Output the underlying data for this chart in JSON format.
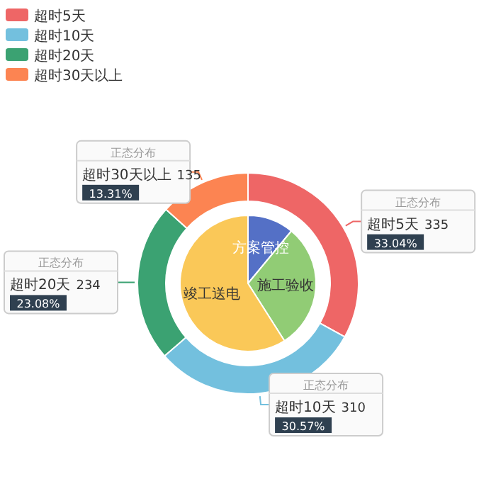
{
  "chart_data": [
    {
      "type": "donut",
      "categories": [
        "超时5天",
        "超时10天",
        "超时20天",
        "超时30天以上"
      ],
      "values": [
        335,
        310,
        234,
        135
      ],
      "colors": [
        "#ee6666",
        "#73c0de",
        "#3ba272",
        "#fc8452"
      ],
      "data_labels": true,
      "annotations": [
        "正态分布",
        "正态分布",
        "正态分布",
        "正态分布",
        {
          "text": "33.04%",
          "x": "超时5天"
        },
        {
          "text": "30.57%",
          "x": "超时10天"
        },
        {
          "text": "23.08%",
          "x": "超时20天"
        },
        {
          "text": "13.31%",
          "x": "超时30天以上"
        }
      ],
      "legend": "top left"
    },
    {
      "type": "pie",
      "categories": [
        "方案管控",
        "施工验收",
        "竣工送电"
      ],
      "values": [
        11,
        30,
        59
      ],
      "colors": [
        "#5470c6",
        "#91cc75",
        "#fac858"
      ]
    }
  ]
}
